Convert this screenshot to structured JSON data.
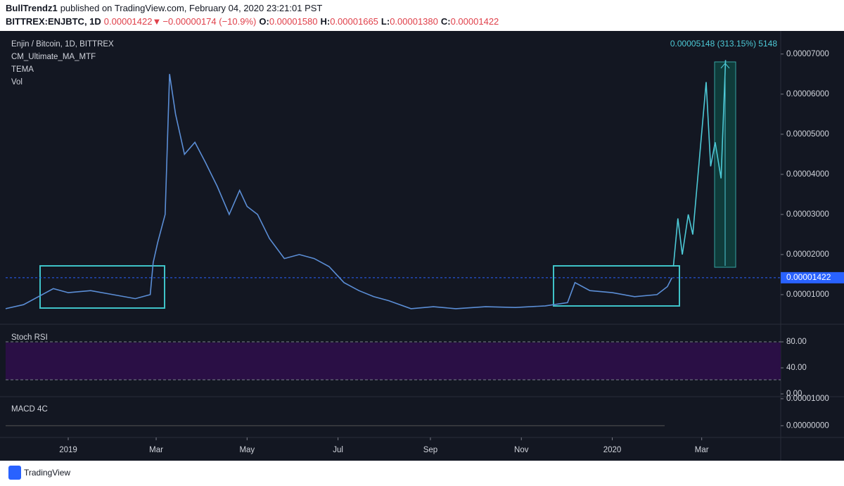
{
  "header": {
    "author": "BullTrendz1",
    "published": "published on TradingView.com, February 04, 2020 23:21:01 PST",
    "symbol": "BITTREX:ENJBTC, 1D",
    "last": "0.00001422",
    "arrow": "▼",
    "change": "−0.00000174 (−10.9%)",
    "ohlc": [
      {
        "label": "O:",
        "value": "0.00001580"
      },
      {
        "label": "H:",
        "value": "0.00001665"
      },
      {
        "label": "L:",
        "value": "0.00001380"
      },
      {
        "label": "C:",
        "value": "0.00001422"
      }
    ]
  },
  "chart_data": {
    "type": "line",
    "title": "Enjin / Bitcoin, 1D, BITTREX",
    "indicators": [
      "CM_Ultimate_MA_MTF",
      "TEMA",
      "Vol"
    ],
    "annotation": "0.00005148 (313.15%) 5148",
    "last_price": {
      "value": 1.422e-05,
      "label": "0.00001422"
    },
    "x": [
      -42,
      -30,
      -20,
      -10,
      0,
      15,
      30,
      45,
      55,
      57,
      60,
      65,
      68,
      72,
      78,
      85,
      92,
      100,
      108,
      115,
      120,
      127,
      135,
      145,
      155,
      165,
      175,
      185,
      195,
      205,
      215,
      230,
      245,
      260,
      280,
      300,
      320,
      335,
      340,
      350,
      365,
      380,
      395,
      402,
      405,
      406,
      409,
      412,
      416,
      419,
      428,
      431,
      434,
      438,
      441
    ],
    "series": [
      {
        "color": "#5b8ed6",
        "values": [
          6.5e-06,
          7.5e-06,
          9.5e-06,
          1.15e-05,
          1.05e-05,
          1.1e-05,
          1e-05,
          9e-06,
          1e-05,
          1.8e-05,
          2.3e-05,
          3e-05,
          6.5e-05,
          5.5e-05,
          4.5e-05,
          4.8e-05,
          4.3e-05,
          3.7e-05,
          3e-05,
          3.6e-05,
          3.2e-05,
          3e-05,
          2.4e-05,
          1.9e-05,
          2e-05,
          1.9e-05,
          1.7e-05,
          1.3e-05,
          1.1e-05,
          9.5e-06,
          8.5e-06,
          6.5e-06,
          7e-06,
          6.5e-06,
          7e-06,
          6.8e-06,
          7.2e-06,
          8e-06,
          1.3e-05,
          1.1e-05,
          1.05e-05,
          9.5e-06,
          1e-05,
          1.2e-05,
          1.422e-05,
          null,
          null,
          null,
          null,
          null,
          null,
          null,
          null,
          null,
          null
        ]
      },
      {
        "color": "#4dc9d6",
        "values": [
          null,
          null,
          null,
          null,
          null,
          null,
          null,
          null,
          null,
          null,
          null,
          null,
          null,
          null,
          null,
          null,
          null,
          null,
          null,
          null,
          null,
          null,
          null,
          null,
          null,
          null,
          null,
          null,
          null,
          null,
          null,
          null,
          null,
          null,
          null,
          null,
          null,
          null,
          null,
          null,
          null,
          null,
          null,
          null,
          null,
          1.7e-05,
          2.9e-05,
          2e-05,
          3e-05,
          2.5e-05,
          6.3e-05,
          4.2e-05,
          4.8e-05,
          3.9e-05,
          6.85e-05
        ]
      }
    ],
    "xlim": [
      -42,
      478
    ],
    "xticks": [
      {
        "value": 0,
        "label": "2019"
      },
      {
        "value": 59,
        "label": "Mar"
      },
      {
        "value": 120,
        "label": "May"
      },
      {
        "value": 181,
        "label": "Jul"
      },
      {
        "value": 243,
        "label": "Sep"
      },
      {
        "value": 304,
        "label": "Nov"
      },
      {
        "value": 365,
        "label": "2020"
      },
      {
        "value": 425,
        "label": "Mar"
      }
    ],
    "ylim": [
      2.8e-06,
      7.47e-05
    ],
    "yticks": [
      {
        "value": 1e-05,
        "label": "0.00001000"
      },
      {
        "value": 2e-05,
        "label": "0.00002000"
      },
      {
        "value": 3e-05,
        "label": "0.00003000"
      },
      {
        "value": 4e-05,
        "label": "0.00004000"
      },
      {
        "value": 5e-05,
        "label": "0.00005000"
      },
      {
        "value": 6e-05,
        "label": "0.00006000"
      },
      {
        "value": 7e-05,
        "label": "0.00007000"
      }
    ]
  },
  "stoch": {
    "title": "Stoch RSI",
    "ylim": [
      -3.2,
      106
    ],
    "yticks": [
      {
        "value": 80,
        "label": "80.00"
      },
      {
        "value": 40,
        "label": "40.00"
      },
      {
        "value": 0,
        "label": "0.00"
      }
    ]
  },
  "macd": {
    "title": "MACD 4C",
    "ylim": [
      -4.1e-06,
      1.05e-05
    ],
    "yticks": [
      {
        "value": 1e-05,
        "label": "0.00001000"
      },
      {
        "value": 0,
        "label": "0.00000000"
      }
    ]
  },
  "footer": {
    "brand": "TradingView"
  }
}
